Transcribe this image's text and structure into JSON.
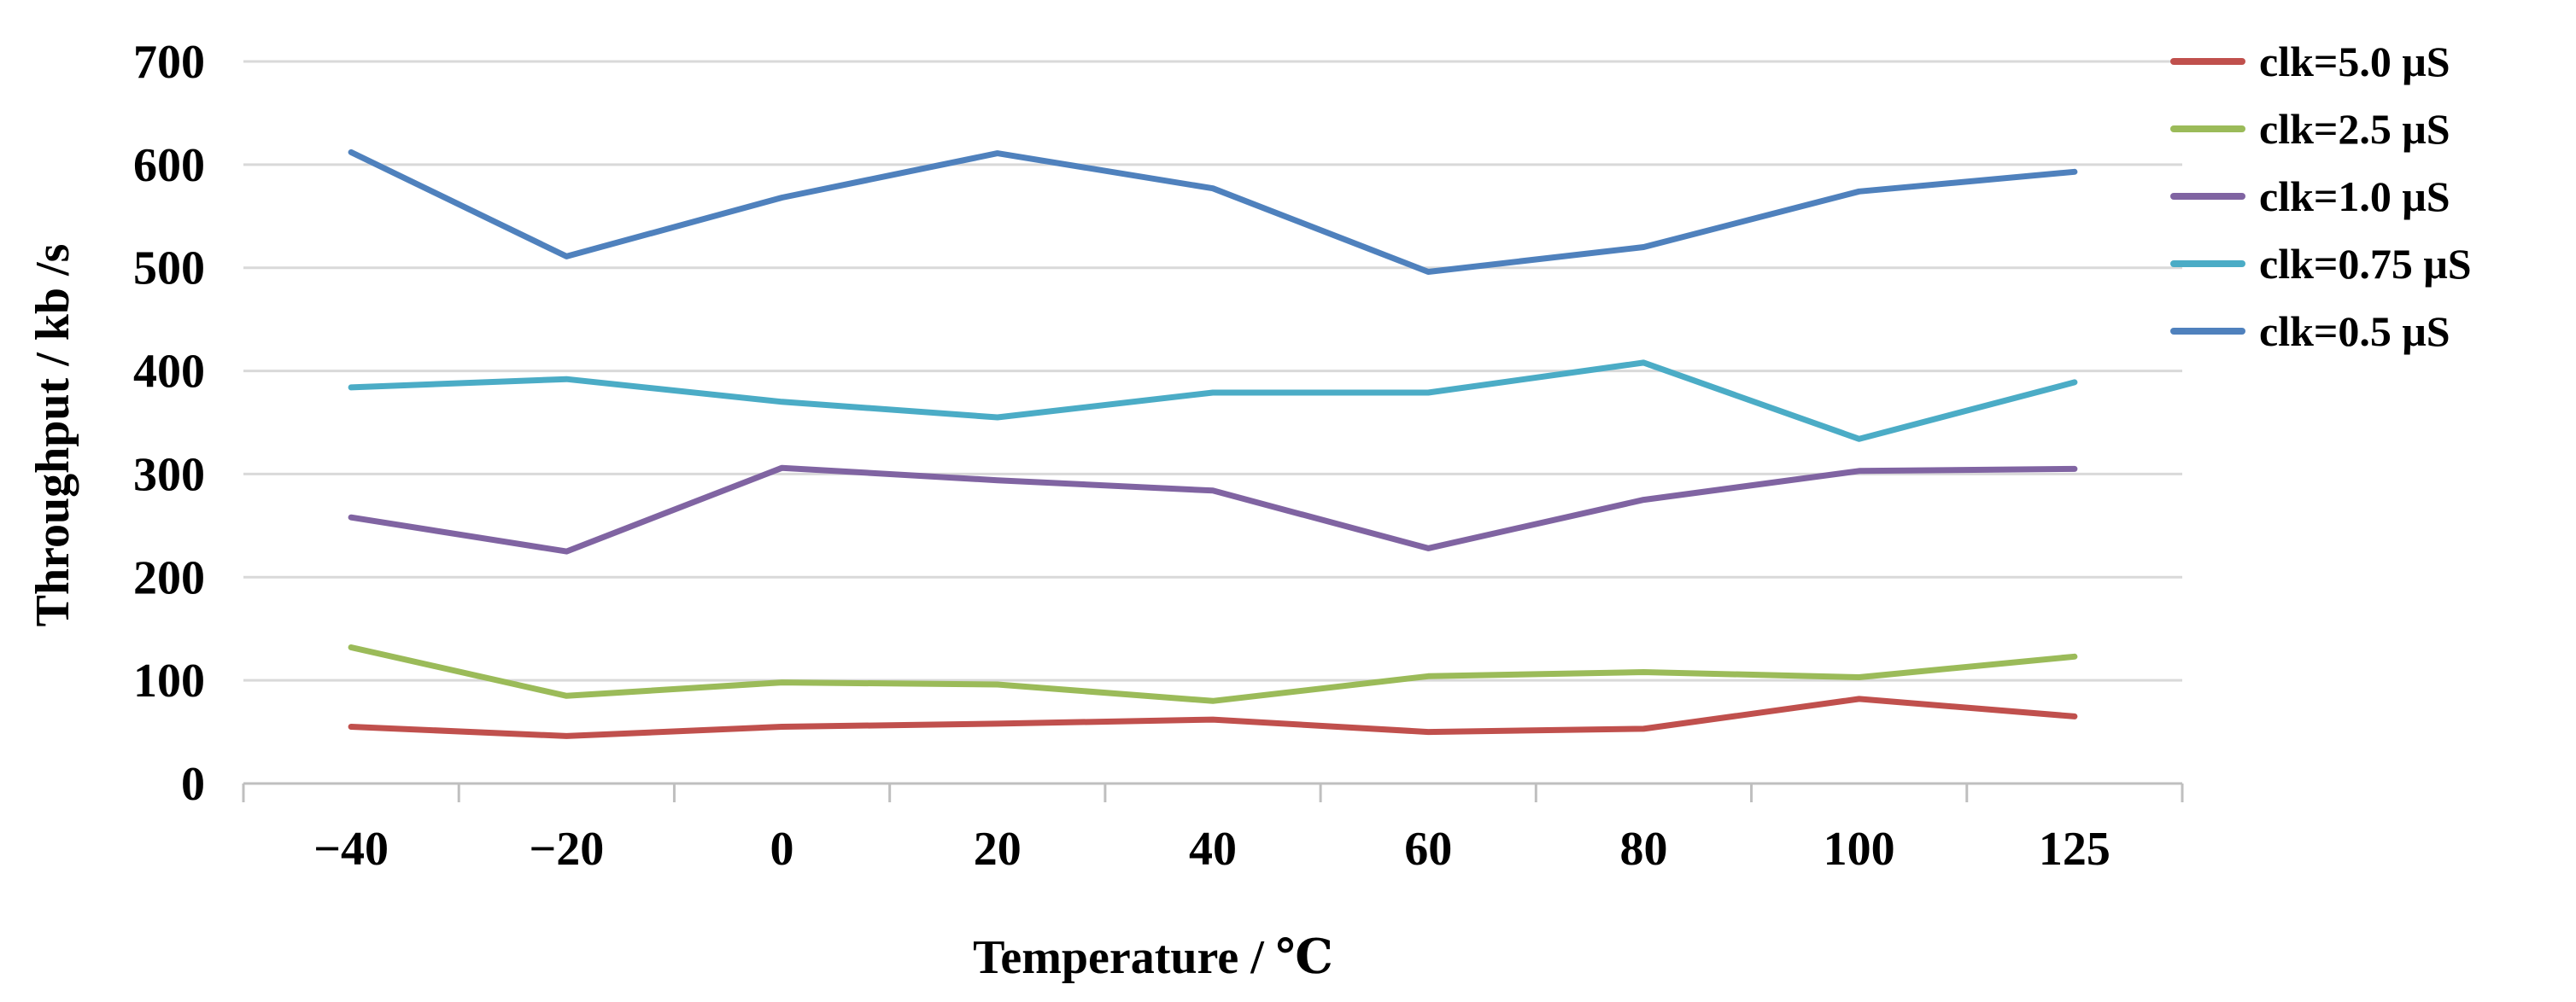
{
  "chart_data": {
    "type": "line",
    "title": "",
    "xlabel": "Temperature / ℃",
    "ylabel": "Throughput / kb /s",
    "categories": [
      "−40",
      "−20",
      "0",
      "20",
      "40",
      "60",
      "80",
      "100",
      "125"
    ],
    "yticks": [
      "0",
      "100",
      "200",
      "300",
      "400",
      "500",
      "600",
      "700"
    ],
    "ylim": [
      0,
      700
    ],
    "grid": true,
    "legend_position": "top-right",
    "series": [
      {
        "name": "clk=5.0 μS",
        "color": "#c0504d",
        "values": [
          55,
          46,
          55,
          58,
          62,
          50,
          53,
          82,
          65
        ]
      },
      {
        "name": "clk=2.5 μS",
        "color": "#9bbb59",
        "values": [
          132,
          85,
          98,
          96,
          80,
          104,
          108,
          103,
          123
        ]
      },
      {
        "name": "clk=1.0 μS",
        "color": "#8064a2",
        "values": [
          258,
          225,
          306,
          294,
          284,
          228,
          275,
          303,
          305
        ]
      },
      {
        "name": "clk=0.75 μS",
        "color": "#4bacc6",
        "values": [
          384,
          392,
          370,
          355,
          379,
          379,
          408,
          334,
          389
        ]
      },
      {
        "name": "clk=0.5 μS",
        "color": "#4f81bd",
        "values": [
          612,
          511,
          568,
          611,
          577,
          496,
          520,
          574,
          593
        ]
      }
    ]
  }
}
